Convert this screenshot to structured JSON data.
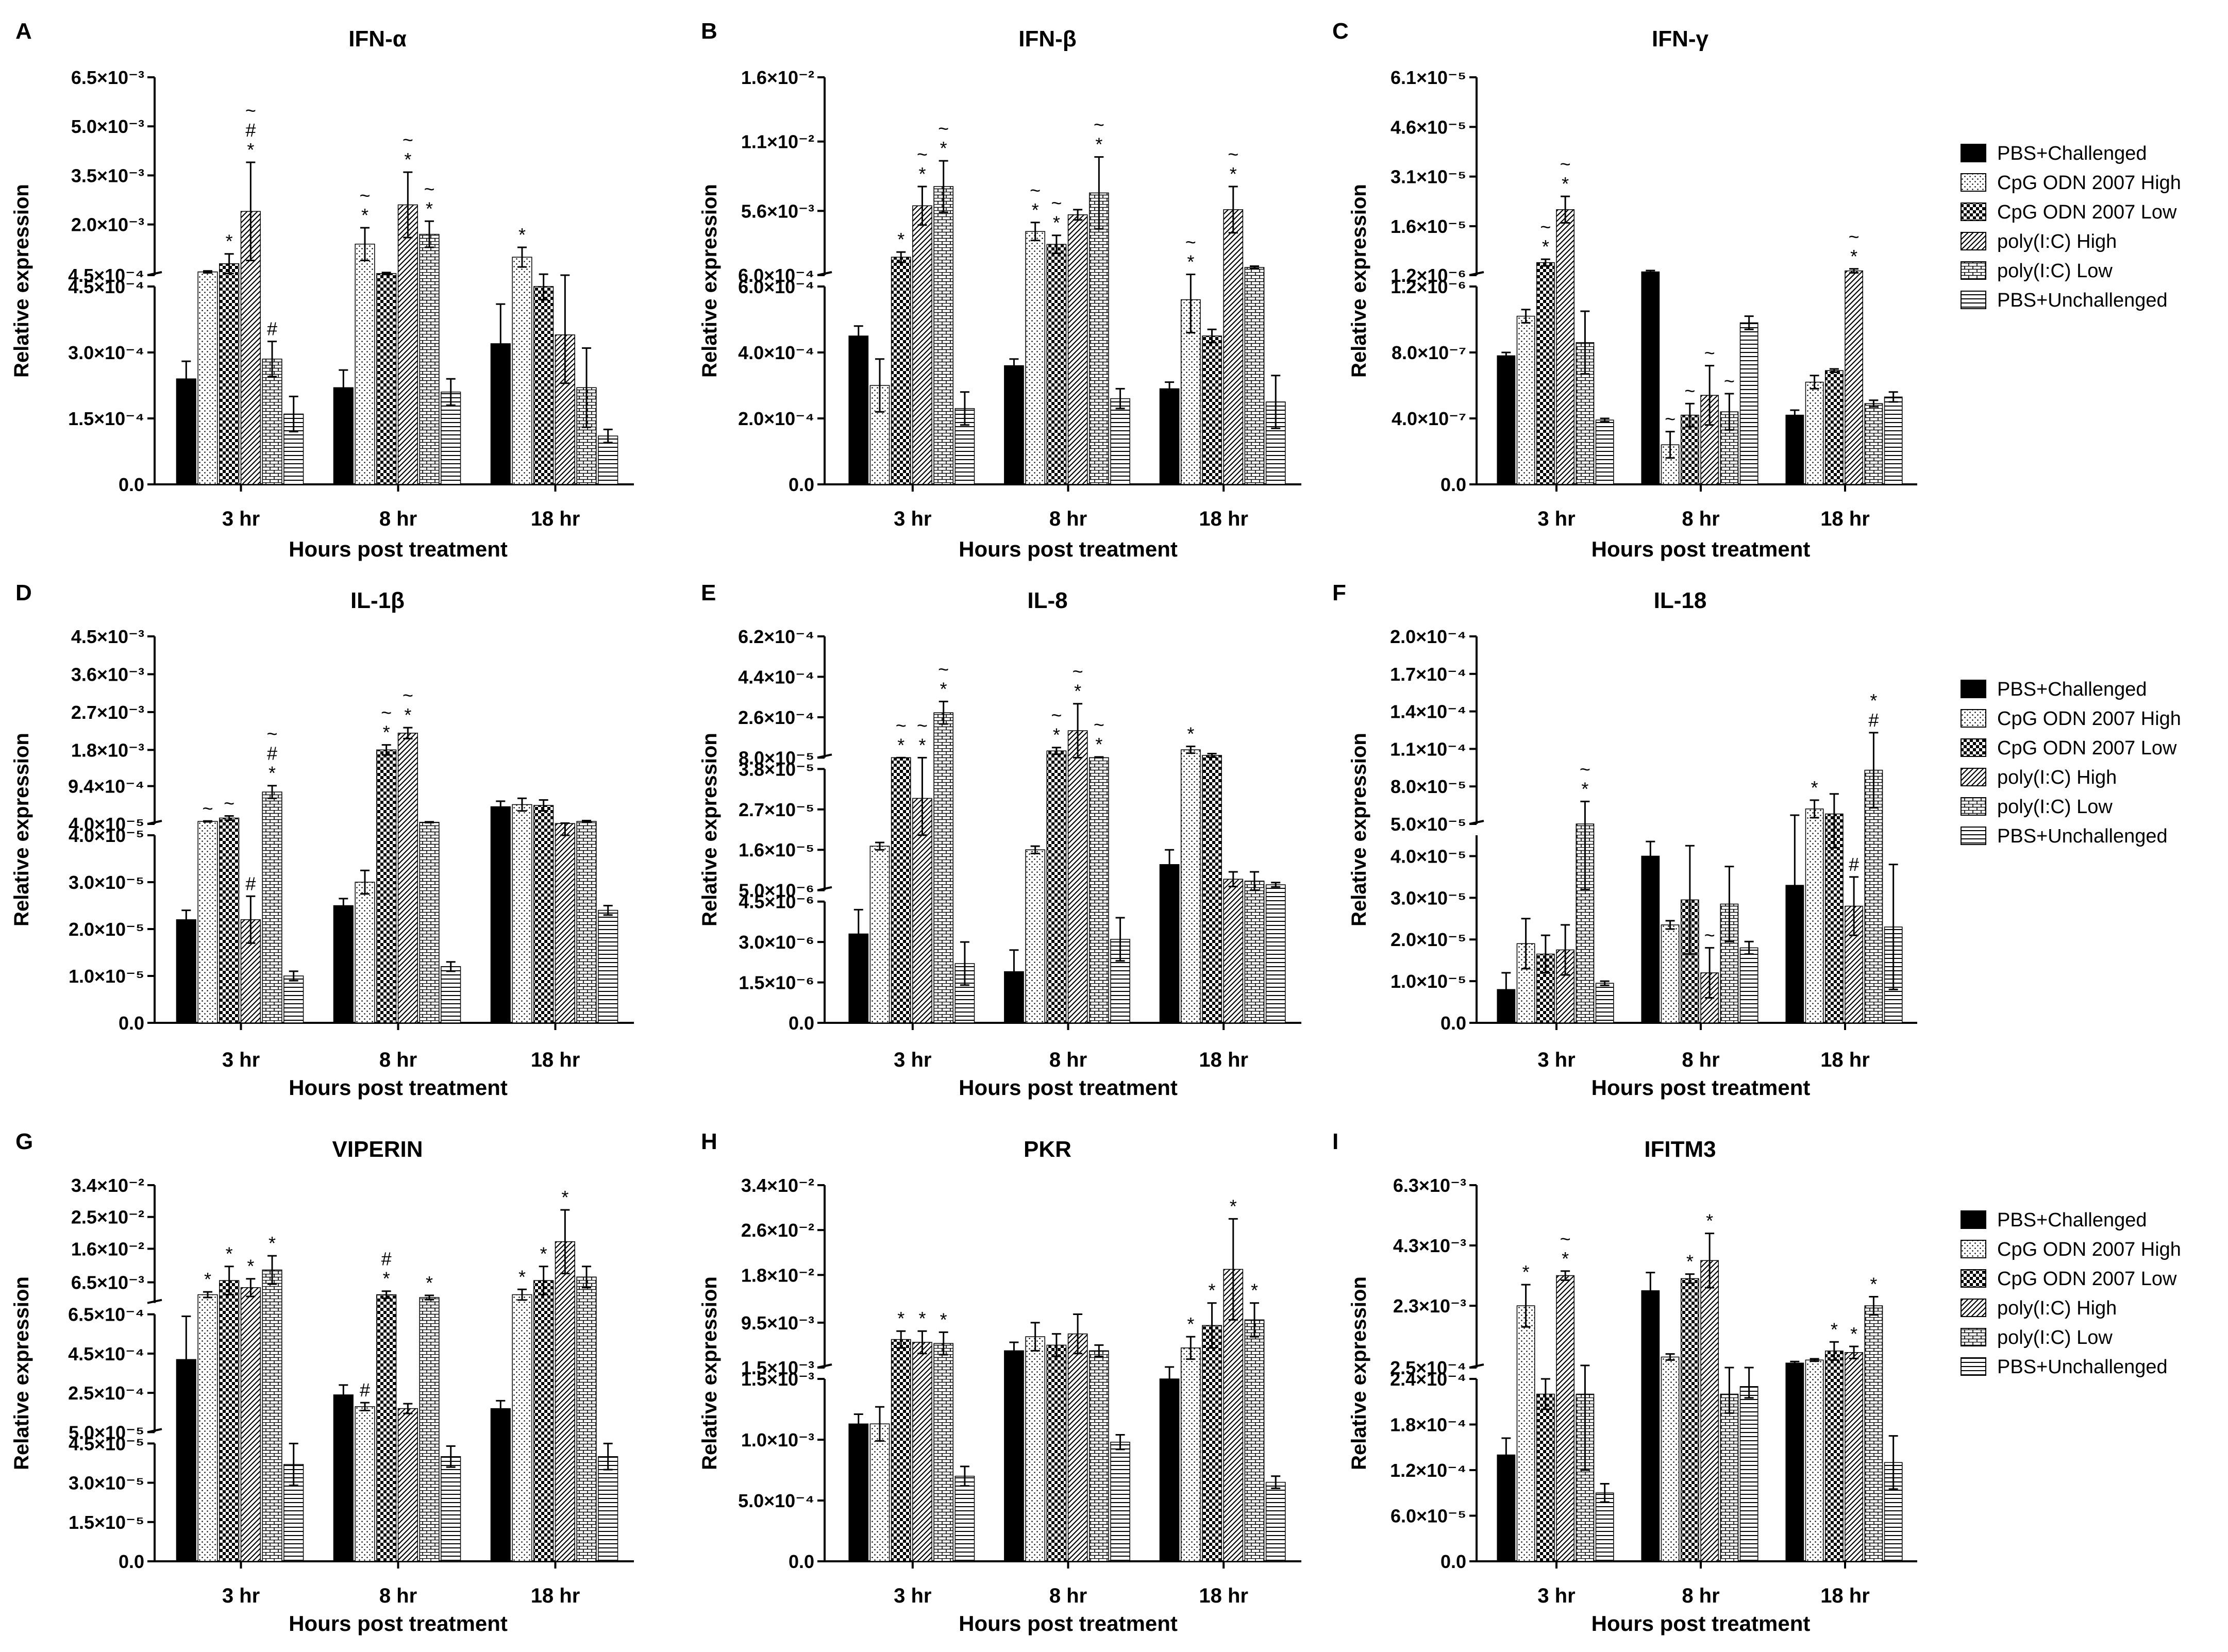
{
  "chart_data": {
    "type": "bar",
    "ylabel": "Relative expression",
    "xlabel": "Hours post treatment",
    "categories": [
      "3 hr",
      "8 hr",
      "18 hr"
    ],
    "legend": [
      "PBS+Challenged",
      "CpG ODN 2007 High",
      "CpG ODN 2007 Low",
      "poly(I:C) High",
      "poly(I:C) Low",
      "PBS+Unchallenged"
    ],
    "panels": [
      {
        "letter": "A",
        "title": "IFN-α",
        "lower": {
          "ticks": [
            "0.0",
            "1.5×10⁻⁴",
            "3.0×10⁻⁴",
            "4.5×10⁻⁴"
          ],
          "max": 0.00045
        },
        "upper": {
          "ticks": [
            "4.5×10⁻⁴",
            "2.0×10⁻³",
            "3.5×10⁻³",
            "5.0×10⁻³",
            "6.5×10⁻³"
          ],
          "min": 0.00045,
          "max": 0.0065
        },
        "groups": [
          {
            "values": [
              0.00024,
              0.00055,
              0.0008,
              0.0024,
              0.000285,
              0.00016
            ],
            "errors": [
              4e-05,
              3e-05,
              0.0003,
              0.0015,
              4e-05,
              4e-05
            ],
            "marks": [
              "",
              "",
              "*",
              "~ # *",
              "#",
              ""
            ]
          },
          {
            "values": [
              0.00022,
              0.0014,
              0.0005,
              0.0026,
              0.0017,
              0.00021
            ],
            "errors": [
              4e-05,
              0.0005,
              3e-05,
              0.001,
              0.0004,
              3e-05
            ],
            "marks": [
              "",
              "~ *",
              "",
              "~ *",
              "~ *",
              ""
            ]
          },
          {
            "values": [
              0.00032,
              0.001,
              0.00045,
              0.00034,
              0.00022,
              0.00011
            ],
            "errors": [
              9e-05,
              0.0003,
              3e-05,
              0.00011,
              9e-05,
              1.5e-05
            ],
            "marks": [
              "",
              "*",
              "",
              "",
              "",
              ""
            ]
          }
        ]
      },
      {
        "letter": "B",
        "title": "IFN-β",
        "lower": {
          "ticks": [
            "0.0",
            "2.0×10⁻⁴",
            "4.0×10⁻⁴",
            "6.0×10⁻⁴"
          ],
          "max": 0.0006
        },
        "upper": {
          "ticks": [
            "6.0×10⁻⁴",
            "5.6×10⁻³",
            "1.1×10⁻²",
            "1.6×10⁻²"
          ],
          "min": 0.0006,
          "max": 0.016
        },
        "groups": [
          {
            "values": [
              0.00045,
              0.0003,
              0.002,
              0.006,
              0.0075,
              0.00023
            ],
            "errors": [
              3e-05,
              8e-05,
              0.0004,
              0.0015,
              0.002,
              5e-05
            ],
            "marks": [
              "",
              "",
              "*",
              "~ *",
              "~ *",
              ""
            ]
          },
          {
            "values": [
              0.00036,
              0.004,
              0.003,
              0.0053,
              0.007,
              0.00026
            ],
            "errors": [
              2e-05,
              0.0007,
              0.0007,
              0.0004,
              0.0028,
              3e-05
            ],
            "marks": [
              "",
              "~ *",
              "~ *",
              "",
              "~ *",
              ""
            ]
          },
          {
            "values": [
              0.00029,
              0.00056,
              0.00045,
              0.0057,
              0.0012,
              0.00025
            ],
            "errors": [
              2e-05,
              0.0001,
              2e-05,
              0.0018,
              0.0001,
              8e-05
            ],
            "marks": [
              "",
              "~ *",
              "",
              "~ *",
              "",
              ""
            ]
          }
        ]
      },
      {
        "letter": "C",
        "title": "IFN-γ",
        "lower": {
          "ticks": [
            "0.0",
            "4.0×10⁻⁷",
            "8.0×10⁻⁷",
            "1.2×10⁻⁶"
          ],
          "max": 1.2e-06
        },
        "upper": {
          "ticks": [
            "1.2×10⁻⁶",
            "1.6×10⁻⁵",
            "3.1×10⁻⁵",
            "4.6×10⁻⁵",
            "6.1×10⁻⁵"
          ],
          "min": 1.2e-06,
          "max": 6.1e-05
        },
        "groups": [
          {
            "values": [
              7.8e-07,
              1.02e-06,
              5e-06,
              2.1e-05,
              8.6e-07,
              3.9e-07
            ],
            "errors": [
              2e-08,
              4e-08,
              1e-06,
              4e-06,
              1.9e-07,
              1e-08
            ],
            "marks": [
              "",
              "",
              "~ *",
              "~ *",
              "",
              ""
            ]
          },
          {
            "values": [
              2.2e-06,
              2.4e-07,
              4.2e-07,
              5.4e-07,
              4.4e-07,
              9.8e-07
            ],
            "errors": [
              4e-07,
              8e-08,
              7e-08,
              1.8e-07,
              1.1e-07,
              4e-08
            ],
            "marks": [
              "",
              "~",
              "~",
              "~",
              "~",
              ""
            ]
          },
          {
            "values": [
              4.2e-07,
              6.2e-07,
              6.9e-07,
              2.5e-06,
              4.9e-07,
              5.3e-07
            ],
            "errors": [
              3e-08,
              4e-08,
              1e-08,
              6e-07,
              2e-08,
              3e-08
            ],
            "marks": [
              "",
              "",
              "",
              "~ *",
              "",
              ""
            ]
          }
        ]
      },
      {
        "letter": "D",
        "title": "IL-1β",
        "lower": {
          "ticks": [
            "0.0",
            "1.0×10⁻⁵",
            "2.0×10⁻⁵",
            "3.0×10⁻⁵",
            "4.0×10⁻⁵"
          ],
          "max": 4e-05
        },
        "upper": {
          "ticks": [
            "4.0×10⁻⁵",
            "9.4×10⁻⁴",
            "1.8×10⁻³",
            "2.7×10⁻³",
            "3.6×10⁻³",
            "4.5×10⁻³"
          ],
          "min": 4e-05,
          "max": 0.0045
        },
        "groups": [
          {
            "values": [
              2.2e-05,
              0.0001,
              0.00018,
              2.2e-05,
              0.0008,
              1e-05
            ],
            "errors": [
              2e-06,
              1e-05,
              5e-05,
              5e-06,
              0.00015,
              1e-06
            ],
            "marks": [
              "",
              "~",
              "~",
              "#",
              "~ # *",
              ""
            ]
          },
          {
            "values": [
              2.5e-05,
              3e-05,
              0.0018,
              0.0022,
              8e-05,
              1.2e-05
            ],
            "errors": [
              1.5e-06,
              2.5e-06,
              0.00012,
              0.00013,
              1e-05,
              1e-06
            ],
            "marks": [
              "",
              "",
              "~ *",
              "~ *",
              "",
              ""
            ]
          },
          {
            "values": [
              0.00045,
              0.0005,
              0.00048,
              5e-05,
              0.0001,
              2.4e-05
            ],
            "errors": [
              0.00013,
              0.00015,
              0.00013,
              1e-05,
              2e-05,
              1e-06
            ],
            "marks": [
              "",
              "",
              "",
              "",
              "",
              ""
            ]
          }
        ]
      },
      {
        "letter": "E",
        "title": "IL-8",
        "lower": {
          "ticks": [
            "0.0",
            "1.5×10⁻⁶",
            "3.0×10⁻⁶",
            "4.5×10⁻⁶"
          ],
          "max": 4.5e-06
        },
        "mid": {
          "ticks": [
            "5.0×10⁻⁶",
            "1.6×10⁻⁵",
            "2.7×10⁻⁵",
            "3.8×10⁻⁵"
          ],
          "min": 5e-06,
          "max": 3.8e-05
        },
        "upper": {
          "ticks": [
            "8.0×10⁻⁵",
            "2.6×10⁻⁴",
            "4.4×10⁻⁴",
            "6.2×10⁻⁴"
          ],
          "min": 8e-05,
          "max": 0.00062
        },
        "groups": [
          {
            "values": [
              3.3e-06,
              1.7e-05,
              6e-05,
              3e-05,
              0.00028,
              2.2e-06
            ],
            "errors": [
              9e-07,
              1e-06,
              3e-06,
              1e-05,
              5e-05,
              8e-07
            ],
            "marks": [
              "",
              "",
              "~ *",
              "~ *",
              "~ *",
              ""
            ]
          },
          {
            "values": [
              1.9e-06,
              1.6e-05,
              0.00011,
              0.0002,
              8e-05,
              3.1e-06
            ],
            "errors": [
              8e-07,
              1e-06,
              1.5e-05,
              0.00012,
              3e-06,
              8e-07
            ],
            "marks": [
              "",
              "",
              "~ *",
              "~ *",
              "~ *",
              ""
            ]
          },
          {
            "values": [
              1.2e-05,
              0.000115,
              9e-05,
              8e-06,
              7.5e-06,
              6.5e-06
            ],
            "errors": [
              4e-06,
              1.5e-05,
              8e-06,
              2e-06,
              2.5e-06,
              6e-07
            ],
            "marks": [
              "",
              "*",
              "",
              "",
              "",
              ""
            ]
          }
        ]
      },
      {
        "letter": "F",
        "title": "IL-18",
        "lower": {
          "ticks": [
            "0.0",
            "1.0×10⁻⁵",
            "2.0×10⁻⁵",
            "3.0×10⁻⁵",
            "4.0×10⁻⁵"
          ],
          "max": 4.5e-05
        },
        "upper": {
          "ticks": [
            "5.0×10⁻⁵",
            "8.0×10⁻⁵",
            "1.1×10⁻⁴",
            "1.4×10⁻⁴",
            "1.7×10⁻⁴",
            "2.0×10⁻⁴"
          ],
          "min": 5e-05,
          "max": 0.0002
        },
        "groups": [
          {
            "values": [
              8e-06,
              1.9e-05,
              1.65e-05,
              1.75e-05,
              5e-05,
              9.5e-06
            ],
            "errors": [
              4e-06,
              6e-06,
              4.5e-06,
              6e-06,
              1.8e-05,
              5e-07
            ],
            "marks": [
              "",
              "",
              "",
              "",
              "~ *",
              ""
            ]
          },
          {
            "values": [
              4e-05,
              2.35e-05,
              2.95e-05,
              1.2e-05,
              2.85e-05,
              1.8e-05
            ],
            "errors": [
              3.5e-06,
              1e-06,
              1.3e-05,
              6e-06,
              9e-06,
              1.5e-06
            ],
            "marks": [
              "",
              "",
              "",
              "~",
              "",
              ""
            ]
          },
          {
            "values": [
              3.3e-05,
              6.2e-05,
              5.8e-05,
              2.8e-05,
              9.3e-05,
              2.3e-05
            ],
            "errors": [
              2.4e-05,
              7e-06,
              1.6e-05,
              7e-06,
              3e-05,
              1.5e-05
            ],
            "marks": [
              "",
              "*",
              "",
              "#",
              "* #",
              ""
            ]
          }
        ]
      },
      {
        "letter": "G",
        "title": "VIPERIN",
        "lower": {
          "ticks": [
            "0.0",
            "1.5×10⁻⁵",
            "3.0×10⁻⁵",
            "4.5×10⁻⁵"
          ],
          "max": 4.5e-05
        },
        "mid": {
          "ticks": [
            "5.0×10⁻⁵",
            "2.5×10⁻⁴",
            "4.5×10⁻⁴",
            "6.5×10⁻⁴"
          ],
          "min": 5e-05,
          "max": 0.00065
        },
        "upper": {
          "ticks": [
            "6.5×10⁻³",
            "1.6×10⁻²",
            "2.5×10⁻²",
            "3.4×10⁻²"
          ],
          "min": 0.00065,
          "max": 0.034
        },
        "groups": [
          {
            "values": [
              0.00042,
              0.003,
              0.007,
              0.005,
              0.01,
              3.7e-05
            ],
            "errors": [
              0.00022,
              0.0008,
              0.004,
              0.0025,
              0.004,
              8e-06
            ],
            "marks": [
              "",
              "*",
              "*",
              "*",
              "*",
              ""
            ]
          },
          {
            "values": [
              0.00024,
              0.00018,
              0.003,
              0.00017,
              0.0022,
              4e-05
            ],
            "errors": [
              5e-05,
              2e-05,
              0.001,
              2.5e-05,
              0.0006,
              4e-06
            ],
            "marks": [
              "",
              "#",
              "# *",
              "",
              "*",
              ""
            ]
          },
          {
            "values": [
              0.00017,
              0.003,
              0.007,
              0.018,
              0.008,
              4e-05
            ],
            "errors": [
              4e-05,
              0.0015,
              0.004,
              0.009,
              0.003,
              5e-06
            ],
            "marks": [
              "",
              "*",
              "*",
              "*",
              "",
              ""
            ]
          }
        ]
      },
      {
        "letter": "H",
        "title": "PKR",
        "lower": {
          "ticks": [
            "0.0",
            "5.0×10⁻⁴",
            "1.0×10⁻³",
            "1.5×10⁻³"
          ],
          "max": 0.0015
        },
        "upper": {
          "ticks": [
            "1.5×10⁻³",
            "9.5×10⁻³",
            "1.8×10⁻²",
            "2.6×10⁻²",
            "3.4×10⁻²"
          ],
          "min": 0.0015,
          "max": 0.034
        },
        "groups": [
          {
            "values": [
              0.00113,
              0.00113,
              0.0065,
              0.006,
              0.0058,
              0.0007
            ],
            "errors": [
              8e-05,
              0.00014,
              0.0015,
              0.002,
              0.002,
              8e-05
            ],
            "marks": [
              "",
              "",
              "*",
              "*",
              "*",
              ""
            ]
          },
          {
            "values": [
              0.0045,
              0.007,
              0.0055,
              0.0075,
              0.0045,
              0.00098
            ],
            "errors": [
              0.0015,
              0.0025,
              0.002,
              0.0035,
              0.001,
              6e-05
            ],
            "marks": [
              "",
              "",
              "",
              "",
              "",
              ""
            ]
          },
          {
            "values": [
              0.0015,
              0.005,
              0.009,
              0.019,
              0.01,
              0.00065
            ],
            "errors": [
              0.0001,
              0.002,
              0.004,
              0.009,
              0.003,
              5e-05
            ],
            "marks": [
              "",
              "*",
              "*",
              "*",
              "*",
              ""
            ]
          }
        ]
      },
      {
        "letter": "I",
        "title": "IFITM3",
        "lower": {
          "ticks": [
            "0.0",
            "6.0×10⁻⁵",
            "1.2×10⁻⁴",
            "1.8×10⁻⁴",
            "2.4×10⁻⁴"
          ],
          "max": 0.00024
        },
        "upper": {
          "ticks": [
            "2.5×10⁻⁴",
            "2.3×10⁻³",
            "4.3×10⁻³",
            "6.3×10⁻³"
          ],
          "min": 0.00025,
          "max": 0.0063
        },
        "groups": [
          {
            "values": [
              0.00014,
              0.0023,
              0.00022,
              0.0033,
              0.00022,
              9e-05
            ],
            "errors": [
              2.2e-05,
              0.0007,
              2e-05,
              0.00015,
              0.0001,
              1.2e-05
            ],
            "marks": [
              "",
              "*",
              "",
              "~ *",
              "",
              ""
            ]
          },
          {
            "values": [
              0.0028,
              0.0006,
              0.0032,
              0.0038,
              0.00022,
              0.00023
            ],
            "errors": [
              0.0006,
              0.0001,
              0.00015,
              0.0009,
              2.5e-05,
              1.5e-05
            ],
            "marks": [
              "",
              "",
              "*",
              "*",
              "",
              ""
            ]
          },
          {
            "values": [
              0.0004,
              0.0005,
              0.0008,
              0.00075,
              0.0023,
              0.00013
            ],
            "errors": [
              5e-05,
              4e-05,
              0.0003,
              0.0002,
              0.0003,
              3.5e-05
            ],
            "marks": [
              "",
              "",
              "*",
              "*",
              "*",
              ""
            ]
          }
        ]
      }
    ]
  }
}
